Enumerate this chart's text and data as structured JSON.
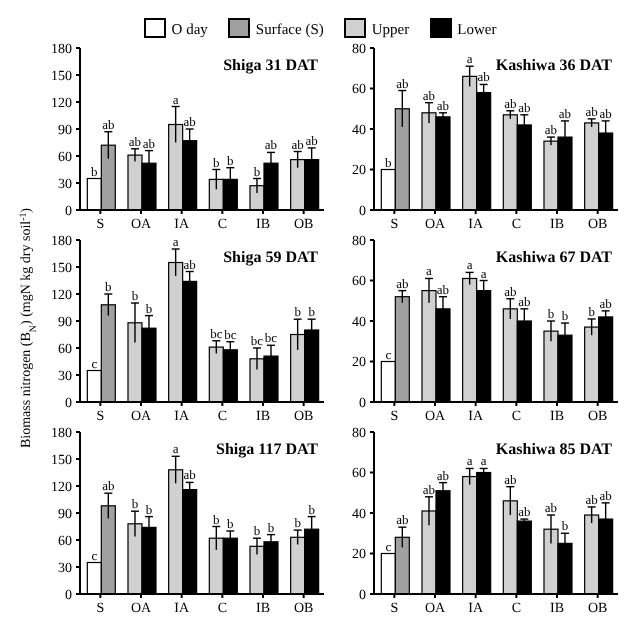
{
  "chart_data": [
    {
      "type": "bar",
      "title": "Shiga 31 DAT",
      "legend": "top",
      "categories": [
        "S",
        "OA",
        "IA",
        "C",
        "IB",
        "OB"
      ],
      "ylim": [
        0,
        180
      ],
      "yticks": [
        0,
        30,
        60,
        90,
        120,
        150,
        180
      ],
      "series": [
        {
          "name": "O day",
          "color": "#ffffff",
          "values": [
            35,
            null,
            null,
            null,
            null,
            null
          ],
          "errors": [
            null,
            null,
            null,
            null,
            null,
            null
          ],
          "value_labels": [
            "b",
            null,
            null,
            null,
            null,
            null
          ]
        },
        {
          "name": "Surface (S)",
          "color": "#a0a0a0",
          "values": [
            72,
            null,
            null,
            null,
            null,
            null
          ],
          "errors": [
            15,
            null,
            null,
            null,
            null,
            null
          ],
          "value_labels": [
            "ab",
            null,
            null,
            null,
            null,
            null
          ]
        },
        {
          "name": "Upper",
          "color": "#d0d0d0",
          "values": [
            null,
            61,
            95,
            34,
            27,
            56
          ],
          "errors": [
            null,
            7,
            20,
            11,
            8,
            9
          ],
          "value_labels": [
            null,
            "ab",
            "a",
            "b",
            "b",
            "ab"
          ]
        },
        {
          "name": "Lower",
          "color": "#000000",
          "values": [
            null,
            52,
            77,
            34,
            52,
            56
          ],
          "errors": [
            null,
            14,
            13,
            13,
            12,
            13
          ],
          "value_labels": [
            null,
            "ab",
            "ab",
            "b",
            "ab",
            "ab"
          ]
        }
      ]
    },
    {
      "type": "bar",
      "title": "Kashiwa 36 DAT",
      "categories": [
        "S",
        "OA",
        "IA",
        "C",
        "IB",
        "OB"
      ],
      "ylim": [
        0,
        80
      ],
      "yticks": [
        0,
        20,
        40,
        60,
        80
      ],
      "series": [
        {
          "color": "#ffffff",
          "values": [
            20,
            null,
            null,
            null,
            null,
            null
          ],
          "errors": [
            null,
            null,
            null,
            null,
            null,
            null
          ],
          "value_labels": [
            "b",
            null,
            null,
            null,
            null,
            null
          ]
        },
        {
          "color": "#a0a0a0",
          "values": [
            50,
            null,
            null,
            null,
            null,
            null
          ],
          "errors": [
            9,
            null,
            null,
            null,
            null,
            null
          ],
          "value_labels": [
            "ab",
            null,
            null,
            null,
            null,
            null
          ]
        },
        {
          "color": "#d0d0d0",
          "values": [
            null,
            48,
            66,
            47,
            34,
            43
          ],
          "errors": [
            null,
            5,
            5,
            2,
            2,
            2
          ],
          "value_labels": [
            null,
            "ab",
            "a",
            "ab",
            "ab",
            "ab"
          ]
        },
        {
          "color": "#000000",
          "values": [
            null,
            46,
            58,
            42,
            36,
            38
          ],
          "errors": [
            null,
            2,
            4,
            5,
            8,
            6
          ],
          "value_labels": [
            null,
            "ab",
            "ab",
            "ab",
            "ab",
            "ab"
          ]
        }
      ]
    },
    {
      "type": "bar",
      "title": "Shiga 59 DAT",
      "ylabel": "Biomass nitrogen (B$_{N}$) (mgN kg dry soil$^{-1}$)",
      "categories": [
        "S",
        "OA",
        "IA",
        "C",
        "IB",
        "OB"
      ],
      "ylim": [
        0,
        180
      ],
      "yticks": [
        0,
        30,
        60,
        90,
        120,
        150,
        180
      ],
      "series": [
        {
          "color": "#ffffff",
          "values": [
            35,
            null,
            null,
            null,
            null,
            null
          ],
          "errors": [
            null,
            null,
            null,
            null,
            null,
            null
          ],
          "value_labels": [
            "c",
            null,
            null,
            null,
            null,
            null
          ]
        },
        {
          "color": "#a0a0a0",
          "values": [
            108,
            null,
            null,
            null,
            null,
            null
          ],
          "errors": [
            12,
            null,
            null,
            null,
            null,
            null
          ],
          "value_labels": [
            "b",
            null,
            null,
            null,
            null,
            null
          ]
        },
        {
          "color": "#d0d0d0",
          "values": [
            null,
            88,
            155,
            61,
            48,
            75
          ],
          "errors": [
            null,
            22,
            15,
            7,
            12,
            17
          ],
          "value_labels": [
            null,
            "b",
            "a",
            "bc",
            "bc",
            "b"
          ]
        },
        {
          "color": "#000000",
          "values": [
            null,
            82,
            134,
            58,
            51,
            80
          ],
          "errors": [
            null,
            14,
            11,
            9,
            12,
            12
          ],
          "value_labels": [
            null,
            "b",
            "ab",
            "bc",
            "bc",
            "b"
          ]
        }
      ]
    },
    {
      "type": "bar",
      "title": "Kashiwa 67 DAT",
      "categories": [
        "S",
        "OA",
        "IA",
        "C",
        "IB",
        "OB"
      ],
      "ylim": [
        0,
        80
      ],
      "yticks": [
        0,
        20,
        40,
        60,
        80
      ],
      "series": [
        {
          "color": "#ffffff",
          "values": [
            20,
            null,
            null,
            null,
            null,
            null
          ],
          "errors": [
            null,
            null,
            null,
            null,
            null,
            null
          ],
          "value_labels": [
            "c",
            null,
            null,
            null,
            null,
            null
          ]
        },
        {
          "color": "#a0a0a0",
          "values": [
            52,
            null,
            null,
            null,
            null,
            null
          ],
          "errors": [
            3,
            null,
            null,
            null,
            null,
            null
          ],
          "value_labels": [
            "ab",
            null,
            null,
            null,
            null,
            null
          ]
        },
        {
          "color": "#d0d0d0",
          "values": [
            null,
            55,
            61,
            46,
            35,
            37
          ],
          "errors": [
            null,
            6,
            3,
            5,
            5,
            4
          ],
          "value_labels": [
            null,
            "a",
            "a",
            "ab",
            "b",
            "b"
          ]
        },
        {
          "color": "#000000",
          "values": [
            null,
            46,
            55,
            40,
            33,
            42
          ],
          "errors": [
            null,
            6,
            5,
            6,
            6,
            3
          ],
          "value_labels": [
            null,
            "ab",
            "a",
            "ab",
            "b",
            "ab"
          ]
        }
      ]
    },
    {
      "type": "bar",
      "title": "Shiga 117 DAT",
      "categories": [
        "S",
        "OA",
        "IA",
        "C",
        "IB",
        "OB"
      ],
      "ylim": [
        0,
        180
      ],
      "yticks": [
        0,
        30,
        60,
        90,
        120,
        150,
        180
      ],
      "series": [
        {
          "color": "#ffffff",
          "values": [
            35,
            null,
            null,
            null,
            null,
            null
          ],
          "errors": [
            null,
            null,
            null,
            null,
            null,
            null
          ],
          "value_labels": [
            "c",
            null,
            null,
            null,
            null,
            null
          ]
        },
        {
          "color": "#a0a0a0",
          "values": [
            98,
            null,
            null,
            null,
            null,
            null
          ],
          "errors": [
            14,
            null,
            null,
            null,
            null,
            null
          ],
          "value_labels": [
            "ab",
            null,
            null,
            null,
            null,
            null
          ]
        },
        {
          "color": "#d0d0d0",
          "values": [
            null,
            78,
            138,
            62,
            53,
            63
          ],
          "errors": [
            null,
            14,
            15,
            13,
            9,
            8
          ],
          "value_labels": [
            null,
            "b",
            "a",
            "b",
            "b",
            "b"
          ]
        },
        {
          "color": "#000000",
          "values": [
            null,
            74,
            116,
            62,
            58,
            72
          ],
          "errors": [
            null,
            12,
            8,
            8,
            8,
            14
          ],
          "value_labels": [
            null,
            "b",
            "ab",
            "b",
            "b",
            "b"
          ]
        }
      ]
    },
    {
      "type": "bar",
      "title": "Kashiwa 85 DAT",
      "categories": [
        "S",
        "OA",
        "IA",
        "C",
        "IB",
        "OB"
      ],
      "ylim": [
        0,
        80
      ],
      "yticks": [
        0,
        20,
        40,
        60,
        80
      ],
      "series": [
        {
          "color": "#ffffff",
          "values": [
            20,
            null,
            null,
            null,
            null,
            null
          ],
          "errors": [
            null,
            null,
            null,
            null,
            null,
            null
          ],
          "value_labels": [
            "c",
            null,
            null,
            null,
            null,
            null
          ]
        },
        {
          "color": "#a0a0a0",
          "values": [
            28,
            null,
            null,
            null,
            null,
            null
          ],
          "errors": [
            5,
            null,
            null,
            null,
            null,
            null
          ],
          "value_labels": [
            "ab",
            null,
            null,
            null,
            null,
            null
          ]
        },
        {
          "color": "#d0d0d0",
          "values": [
            null,
            41,
            58,
            46,
            32,
            39
          ],
          "errors": [
            null,
            7,
            4,
            7,
            7,
            4
          ],
          "value_labels": [
            null,
            "ab",
            "a",
            "ab",
            "ab",
            "ab"
          ]
        },
        {
          "color": "#000000",
          "values": [
            null,
            51,
            60,
            36,
            25,
            37
          ],
          "errors": [
            null,
            4,
            2,
            1,
            5,
            8
          ],
          "value_labels": [
            null,
            "ab",
            "a",
            "ab",
            "b",
            "ab"
          ]
        }
      ]
    }
  ]
}
